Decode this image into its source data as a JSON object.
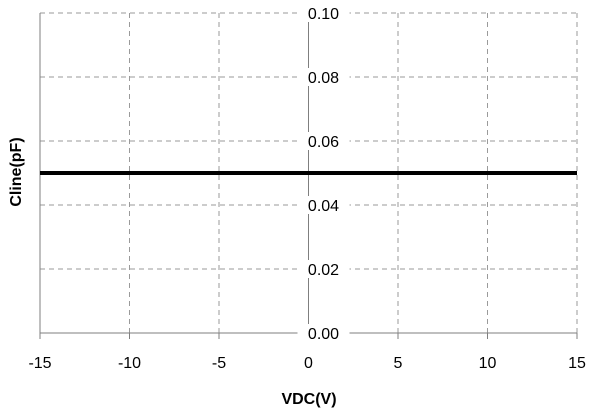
{
  "chart_data": {
    "type": "line",
    "title": "",
    "xlabel": "VDC(V)",
    "ylabel": "Cline(pF)",
    "xlim": [
      -15,
      15
    ],
    "ylim": [
      0.0,
      0.1
    ],
    "x_ticks": [
      "-15",
      "-10",
      "-5",
      "0",
      "5",
      "10",
      "15"
    ],
    "y_ticks": [
      "0.00",
      "0.02",
      "0.04",
      "0.06",
      "0.08",
      "0.10"
    ],
    "grid": true,
    "legend": "none",
    "series": [
      {
        "x": [
          -15,
          15
        ],
        "y": [
          0.05,
          0.05
        ],
        "color": "#000000"
      }
    ]
  }
}
